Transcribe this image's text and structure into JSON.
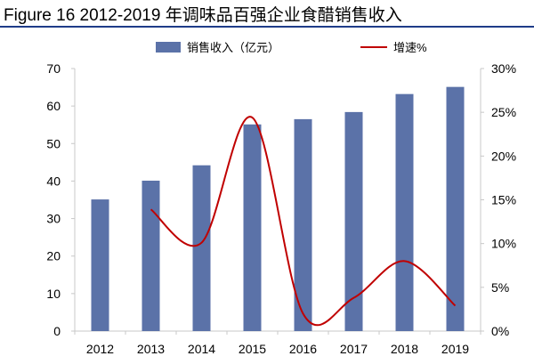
{
  "chart_data": {
    "type": "bar+line",
    "title": "Figure 16 2012-2019 年调味品百强企业食醋销售收入",
    "categories": [
      "2012",
      "2013",
      "2014",
      "2015",
      "2016",
      "2017",
      "2018",
      "2019"
    ],
    "series": [
      {
        "name": "销售收入（亿元）",
        "type": "bar",
        "axis": "left",
        "color": "#5b72a8",
        "values": [
          35.1,
          40.1,
          44.2,
          55.1,
          56.5,
          58.4,
          63.2,
          65.1
        ]
      },
      {
        "name": "增速%",
        "type": "line",
        "axis": "right",
        "color": "#c00000",
        "smooth": true,
        "values": [
          null,
          13.9,
          10.1,
          24.4,
          2.0,
          3.8,
          8.0,
          2.9
        ]
      }
    ],
    "left_axis": {
      "ylim": [
        0,
        70
      ],
      "ticks": [
        "0",
        "10",
        "20",
        "30",
        "40",
        "50",
        "60",
        "70"
      ]
    },
    "right_axis": {
      "ylim": [
        0,
        30
      ],
      "ticks": [
        "0%",
        "5%",
        "10%",
        "15%",
        "20%",
        "25%",
        "30%"
      ]
    },
    "grid": false,
    "legend": "top"
  }
}
